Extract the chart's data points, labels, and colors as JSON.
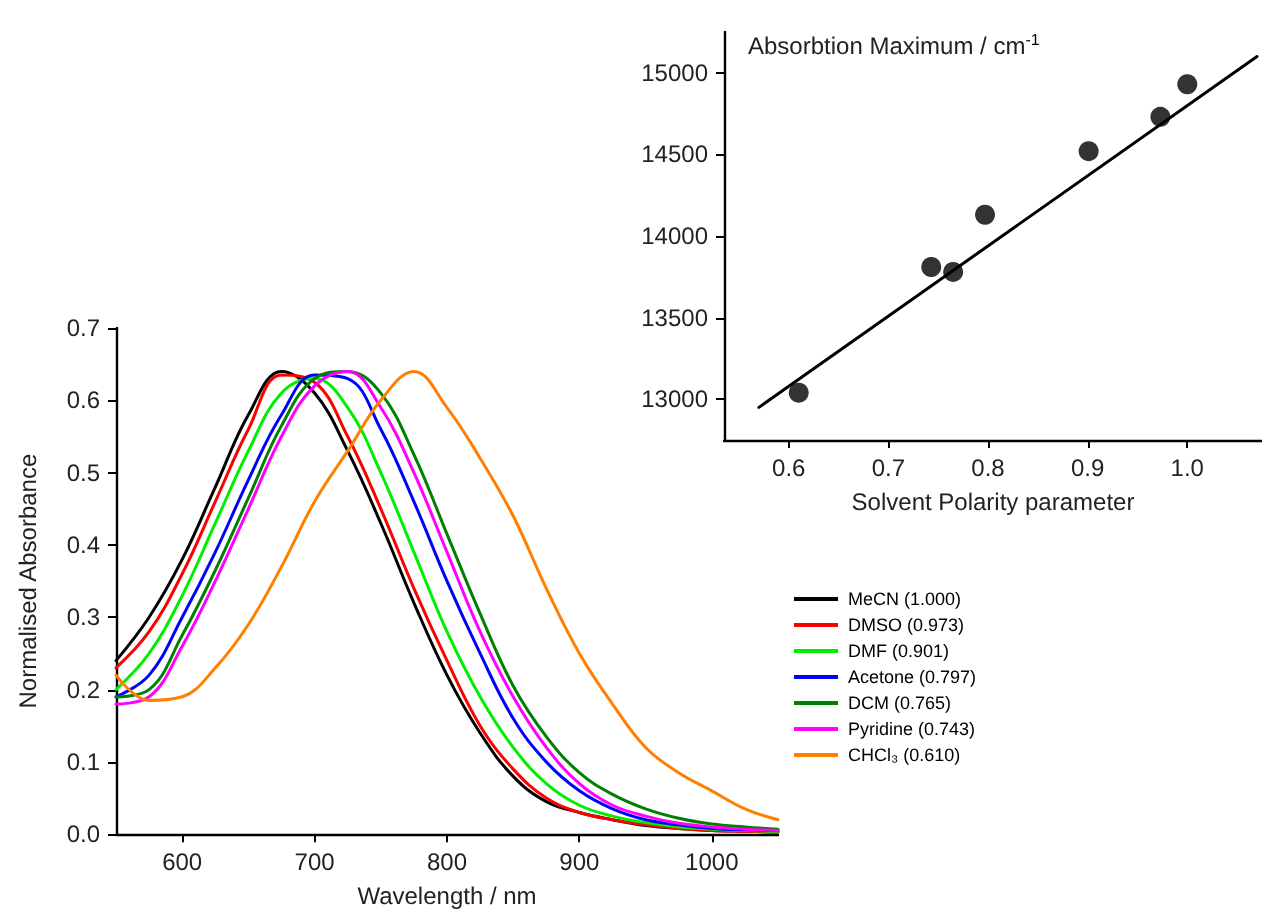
{
  "chart_data": [
    {
      "type": "line",
      "xlabel": "Wavelength / nm",
      "ylabel": "Normalised Absorbance",
      "xlim": [
        550,
        1050
      ],
      "ylim": [
        0,
        0.7
      ],
      "xticks": [
        600,
        700,
        800,
        900,
        1000
      ],
      "yticks": [
        {
          "value": 0,
          "label": "0.0"
        },
        0.1,
        0.2,
        0.3,
        0.4,
        0.5,
        0.6,
        0.7
      ],
      "legend": "right",
      "marker": "none",
      "grid": false,
      "x": [
        550,
        575,
        600,
        625,
        650,
        675,
        700,
        725,
        750,
        775,
        800,
        825,
        850,
        875,
        900,
        925,
        950,
        975,
        1000,
        1025,
        1050
      ],
      "series": [
        {
          "name": "MeCN (1.000)",
          "color": "#000000",
          "values": [
            0.24,
            0.3,
            0.38,
            0.48,
            0.58,
            0.64,
            0.61,
            0.53,
            0.43,
            0.32,
            0.22,
            0.14,
            0.08,
            0.045,
            0.03,
            0.02,
            0.012,
            0.008,
            0.005,
            0.004,
            0.003
          ]
        },
        {
          "name": "DMSO (0.973)",
          "color": "#ff0000",
          "values": [
            0.23,
            0.28,
            0.36,
            0.46,
            0.56,
            0.635,
            0.625,
            0.55,
            0.45,
            0.34,
            0.24,
            0.15,
            0.09,
            0.05,
            0.03,
            0.02,
            0.013,
            0.008,
            0.005,
            0.004,
            0.003
          ]
        },
        {
          "name": "DMF (0.901)",
          "color": "#00ee00",
          "values": [
            0.2,
            0.25,
            0.33,
            0.43,
            0.53,
            0.61,
            0.63,
            0.59,
            0.5,
            0.39,
            0.28,
            0.19,
            0.12,
            0.07,
            0.04,
            0.025,
            0.016,
            0.01,
            0.007,
            0.005,
            0.004
          ]
        },
        {
          "name": "Acetone (0.797)",
          "color": "#0000ff",
          "values": [
            0.19,
            0.22,
            0.3,
            0.39,
            0.49,
            0.58,
            0.635,
            0.63,
            0.56,
            0.46,
            0.35,
            0.25,
            0.16,
            0.1,
            0.06,
            0.035,
            0.02,
            0.013,
            0.008,
            0.006,
            0.005
          ]
        },
        {
          "name": "DCM (0.765)",
          "color": "#008000",
          "values": [
            0.19,
            0.2,
            0.275,
            0.365,
            0.465,
            0.565,
            0.63,
            0.64,
            0.61,
            0.525,
            0.415,
            0.305,
            0.205,
            0.135,
            0.085,
            0.055,
            0.035,
            0.022,
            0.014,
            0.01,
            0.007
          ]
        },
        {
          "name": "Pyridine (0.743)",
          "color": "#ff00ff",
          "values": [
            0.18,
            0.19,
            0.26,
            0.35,
            0.45,
            0.55,
            0.62,
            0.64,
            0.59,
            0.5,
            0.39,
            0.28,
            0.19,
            0.12,
            0.07,
            0.04,
            0.025,
            0.015,
            0.01,
            0.007,
            0.005
          ]
        },
        {
          "name": "CHCl₃ (0.610)",
          "color": "#ff8000",
          "values": [
            0.22,
            0.185,
            0.19,
            0.23,
            0.29,
            0.37,
            0.46,
            0.53,
            0.6,
            0.64,
            0.59,
            0.52,
            0.44,
            0.34,
            0.25,
            0.18,
            0.12,
            0.085,
            0.06,
            0.035,
            0.02
          ]
        }
      ]
    },
    {
      "type": "scatter",
      "xlabel": "Solvent Polarity parameter",
      "ylabel": "Absorbtion Maximum / cm$^{-1}$",
      "xlim": [
        0.535,
        1.075
      ],
      "ylim": [
        12750,
        15250
      ],
      "xticks": [
        0.6,
        0.7,
        0.8,
        0.9,
        {
          "value": 1,
          "label": "1.0"
        }
      ],
      "yticks": [
        13000,
        13500,
        14000,
        14500,
        15000
      ],
      "grid": false,
      "legend": false,
      "marker": "circle",
      "series": [
        {
          "color": "#000000",
          "x": [
            0.61,
            0.743,
            0.765,
            0.797,
            0.901,
            0.973,
            1.0
          ],
          "values": [
            13040,
            13810,
            13780,
            14130,
            14520,
            14730,
            14930
          ]
        },
        {
          "type": "line",
          "marker": "none",
          "color": "#000000",
          "x": [
            0.57,
            1.07
          ],
          "values": [
            12950,
            15100
          ]
        }
      ]
    }
  ]
}
